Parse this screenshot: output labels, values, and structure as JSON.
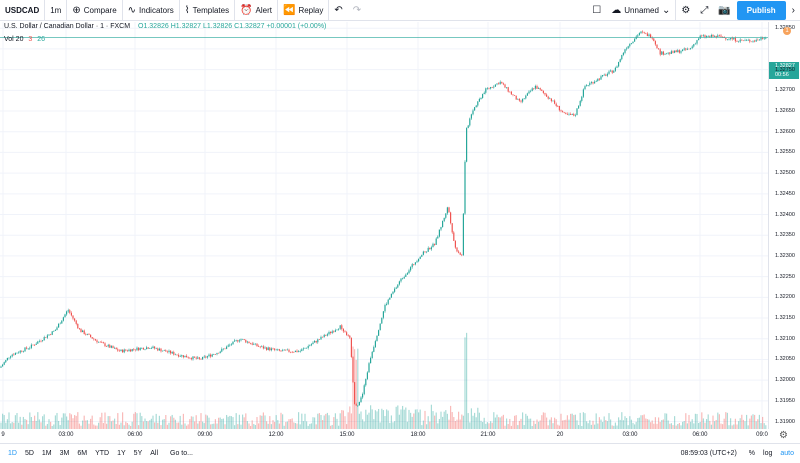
{
  "toolbar": {
    "symbol": "USDCAD",
    "interval": "1m",
    "compare_label": "Compare",
    "indicators_label": "Indicators",
    "templates_label": "Templates",
    "alert_label": "Alert",
    "replay_label": "Replay",
    "layout_name": "Unnamed",
    "publish_label": "Publish"
  },
  "legend": {
    "title": "U.S. Dollar / Canadian Dollar · 1 · FXCM",
    "ohlc": "O1.32826 H1.32827 L1.32826 C1.32827 +0.00001 (+0.00%)",
    "volume": "Vol 20",
    "volume_a": "3",
    "volume_b": "26"
  },
  "price_axis": {
    "labels": [
      "1.32850",
      "1.32800",
      "1.32750",
      "1.32700",
      "1.32650",
      "1.32600",
      "1.32550",
      "1.32500",
      "1.32450",
      "1.32400",
      "1.32350",
      "1.32300",
      "1.32250",
      "1.32200",
      "1.32150",
      "1.32100",
      "1.32050",
      "1.32000",
      "1.31950",
      "1.31900"
    ],
    "current_price": "1.32827",
    "countdown": "00:56",
    "alert_badge": "1"
  },
  "time_axis": {
    "labels": [
      "9",
      "03:00",
      "06:00",
      "09:00",
      "12:00",
      "15:00",
      "18:00",
      "21:00",
      "20",
      "03:00",
      "06:00",
      "09:0"
    ]
  },
  "bottom": {
    "ranges": [
      "1D",
      "5D",
      "1M",
      "3M",
      "6M",
      "YTD",
      "1Y",
      "5Y",
      "All"
    ],
    "goto_label": "Go to...",
    "clock": "08:59:03 (UTC+2)",
    "percent": "%",
    "log": "log",
    "auto": "auto"
  },
  "colors": {
    "up": "#26a69a",
    "down": "#ef5350",
    "accent": "#2196f3"
  },
  "chart_data": {
    "type": "candlestick",
    "price_range": [
      1.3188,
      1.3287
    ],
    "path_points": [
      [
        0,
        1.3203
      ],
      [
        10,
        1.3206
      ],
      [
        30,
        1.3208
      ],
      [
        55,
        1.3212
      ],
      [
        68,
        1.3217
      ],
      [
        80,
        1.3212
      ],
      [
        100,
        1.3209
      ],
      [
        120,
        1.3207
      ],
      [
        150,
        1.3208
      ],
      [
        180,
        1.3206
      ],
      [
        200,
        1.3205
      ],
      [
        220,
        1.3207
      ],
      [
        240,
        1.321
      ],
      [
        260,
        1.3208
      ],
      [
        280,
        1.3207
      ],
      [
        300,
        1.3207
      ],
      [
        320,
        1.321
      ],
      [
        340,
        1.3213
      ],
      [
        350,
        1.321
      ],
      [
        355,
        1.3193
      ],
      [
        362,
        1.3196
      ],
      [
        370,
        1.3205
      ],
      [
        385,
        1.3218
      ],
      [
        400,
        1.3224
      ],
      [
        420,
        1.323
      ],
      [
        435,
        1.3233
      ],
      [
        448,
        1.3242
      ],
      [
        455,
        1.3232
      ],
      [
        462,
        1.323
      ],
      [
        466,
        1.326
      ],
      [
        472,
        1.3265
      ],
      [
        485,
        1.327
      ],
      [
        500,
        1.3272
      ],
      [
        512,
        1.3269
      ],
      [
        520,
        1.3267
      ],
      [
        535,
        1.3271
      ],
      [
        550,
        1.3268
      ],
      [
        565,
        1.3264
      ],
      [
        575,
        1.3264
      ],
      [
        585,
        1.3271
      ],
      [
        600,
        1.3273
      ],
      [
        615,
        1.3275
      ],
      [
        625,
        1.328
      ],
      [
        640,
        1.3284
      ],
      [
        652,
        1.3283
      ],
      [
        660,
        1.3279
      ],
      [
        670,
        1.3279
      ],
      [
        690,
        1.328
      ],
      [
        700,
        1.3283
      ],
      [
        720,
        1.3283
      ],
      [
        740,
        1.3282
      ],
      [
        755,
        1.3282
      ],
      [
        766,
        1.3283
      ]
    ]
  }
}
